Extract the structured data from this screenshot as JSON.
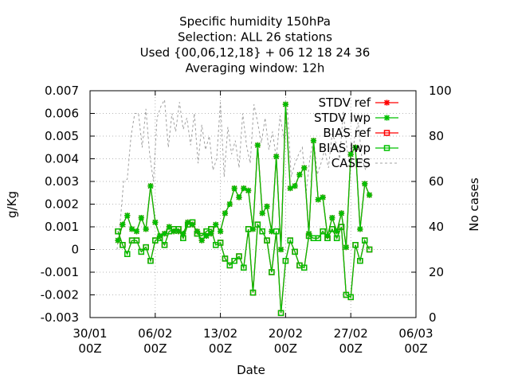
{
  "chart_data": {
    "type": "line",
    "title_lines": [
      "Specific humidity 150hPa",
      "Selection: ALL     26 stations",
      "Used {00,06,12,18} + 06 12 18 24 36",
      "Averaging window: 12h"
    ],
    "xlabel": "Date",
    "ylabel": "g/Kg",
    "y2label": "No cases",
    "xlim": [
      0,
      35
    ],
    "ylim": [
      -0.003,
      0.007
    ],
    "y2lim": [
      0,
      100
    ],
    "x_ticks": [
      {
        "value": 0,
        "line1": "30/01",
        "line2": "00Z"
      },
      {
        "value": 7,
        "line1": "06/02",
        "line2": "00Z"
      },
      {
        "value": 14,
        "line1": "13/02",
        "line2": "00Z"
      },
      {
        "value": 21,
        "line1": "20/02",
        "line2": "00Z"
      },
      {
        "value": 28,
        "line1": "27/02",
        "line2": "00Z"
      },
      {
        "value": 35,
        "line1": "06/03",
        "line2": "00Z"
      }
    ],
    "y_ticks": [
      "-0.003",
      "-0.002",
      "-0.001",
      "0",
      "0.001",
      "0.002",
      "0.003",
      "0.004",
      "0.005",
      "0.006",
      "0.007"
    ],
    "y2_ticks": [
      "0",
      "20",
      "40",
      "60",
      "80",
      "100"
    ],
    "legend_position": "top-right",
    "grid": "dotted",
    "series": [
      {
        "name": "STDV ref",
        "color": "#ff0000",
        "marker": "star",
        "axis": "y",
        "x": [
          3.0,
          3.5,
          4.0,
          4.5,
          5.0,
          5.5,
          6.0,
          6.5,
          7.0,
          7.5,
          8.0,
          8.5,
          9.0,
          9.5,
          10.0,
          10.5,
          11.0,
          11.5,
          12.0,
          12.5,
          13.0,
          13.5,
          14.0,
          14.5,
          15.0,
          15.5,
          16.0,
          16.5,
          17.0,
          17.5,
          18.0,
          18.5,
          19.0,
          19.5,
          20.0,
          20.5,
          21.0,
          21.5,
          22.0,
          22.5,
          23.0,
          23.5,
          24.0,
          24.5,
          25.0,
          25.5,
          26.0,
          26.5,
          27.0,
          27.5,
          28.0,
          28.5,
          29.0,
          29.5,
          30.0
        ],
        "y": [
          0.0004,
          0.0011,
          0.0015,
          0.0009,
          0.0008,
          0.0014,
          0.0009,
          0.0028,
          0.0012,
          0.0006,
          0.0007,
          0.001,
          0.0008,
          0.0008,
          0.0007,
          0.0012,
          0.0011,
          0.0008,
          0.0004,
          0.0006,
          0.0007,
          0.0011,
          0.0008,
          0.0016,
          0.002,
          0.0027,
          0.0023,
          0.0027,
          0.0026,
          0.0009,
          0.0046,
          0.0016,
          0.0019,
          0.0008,
          0.0041,
          0.0,
          0.0064,
          0.0027,
          0.0028,
          0.0033,
          0.0036,
          0.0007,
          0.0048,
          0.0022,
          0.0023,
          0.0006,
          0.0014,
          0.0008,
          0.0016,
          0.0001,
          0.0042,
          0.0045,
          0.0009,
          0.0029,
          0.0024
        ]
      },
      {
        "name": "STDV lwp",
        "color": "#00c000",
        "marker": "star",
        "axis": "y",
        "x": [
          3.0,
          3.5,
          4.0,
          4.5,
          5.0,
          5.5,
          6.0,
          6.5,
          7.0,
          7.5,
          8.0,
          8.5,
          9.0,
          9.5,
          10.0,
          10.5,
          11.0,
          11.5,
          12.0,
          12.5,
          13.0,
          13.5,
          14.0,
          14.5,
          15.0,
          15.5,
          16.0,
          16.5,
          17.0,
          17.5,
          18.0,
          18.5,
          19.0,
          19.5,
          20.0,
          20.5,
          21.0,
          21.5,
          22.0,
          22.5,
          23.0,
          23.5,
          24.0,
          24.5,
          25.0,
          25.5,
          26.0,
          26.5,
          27.0,
          27.5,
          28.0,
          28.5,
          29.0,
          29.5,
          30.0
        ],
        "y": [
          0.0004,
          0.0011,
          0.0015,
          0.0009,
          0.0008,
          0.0014,
          0.0009,
          0.0028,
          0.0012,
          0.0006,
          0.0007,
          0.001,
          0.0008,
          0.0008,
          0.0007,
          0.0012,
          0.0011,
          0.0008,
          0.0004,
          0.0006,
          0.0007,
          0.0011,
          0.0008,
          0.0016,
          0.002,
          0.0027,
          0.0023,
          0.0027,
          0.0026,
          0.0009,
          0.0046,
          0.0016,
          0.0019,
          0.0008,
          0.0041,
          0.0,
          0.0064,
          0.0027,
          0.0028,
          0.0033,
          0.0036,
          0.0007,
          0.0048,
          0.0022,
          0.0023,
          0.0006,
          0.0014,
          0.0008,
          0.0016,
          0.0001,
          0.0042,
          0.0045,
          0.0009,
          0.0029,
          0.0024
        ]
      },
      {
        "name": "BIAS ref",
        "color": "#ff0000",
        "marker": "square",
        "axis": "y",
        "x": [
          3.0,
          3.5,
          4.0,
          4.5,
          5.0,
          5.5,
          6.0,
          6.5,
          7.0,
          7.5,
          8.0,
          8.5,
          9.0,
          9.5,
          10.0,
          10.5,
          11.0,
          11.5,
          12.0,
          12.5,
          13.0,
          13.5,
          14.0,
          14.5,
          15.0,
          15.5,
          16.0,
          16.5,
          17.0,
          17.5,
          18.0,
          18.5,
          19.0,
          19.5,
          20.0,
          20.5,
          21.0,
          21.5,
          22.0,
          22.5,
          23.0,
          23.5,
          24.0,
          24.5,
          25.0,
          25.5,
          26.0,
          26.5,
          27.0,
          27.5,
          28.0,
          28.5,
          29.0,
          29.5,
          30.0
        ],
        "y": [
          0.0008,
          0.0002,
          -0.0002,
          0.0004,
          0.0004,
          -0.0001,
          0.0001,
          -0.0005,
          0.0004,
          0.0005,
          0.0002,
          0.0008,
          0.0009,
          0.0009,
          0.0005,
          0.0011,
          0.0012,
          0.0007,
          0.0006,
          0.0008,
          0.0009,
          0.0002,
          0.0003,
          -0.0004,
          -0.0007,
          -0.0005,
          -0.0003,
          -0.0008,
          0.0009,
          -0.0019,
          0.0011,
          0.0008,
          0.0004,
          -0.001,
          0.0008,
          -0.0028,
          -0.0005,
          0.0004,
          -0.0001,
          -0.0007,
          -0.0008,
          0.0006,
          0.0005,
          0.0005,
          0.0008,
          0.0005,
          0.0009,
          0.0005,
          0.001,
          -0.002,
          -0.0021,
          0.0002,
          -0.0005,
          0.0004,
          0.0
        ]
      },
      {
        "name": "BIAS lwp",
        "color": "#00c000",
        "marker": "square",
        "axis": "y",
        "x": [
          3.0,
          3.5,
          4.0,
          4.5,
          5.0,
          5.5,
          6.0,
          6.5,
          7.0,
          7.5,
          8.0,
          8.5,
          9.0,
          9.5,
          10.0,
          10.5,
          11.0,
          11.5,
          12.0,
          12.5,
          13.0,
          13.5,
          14.0,
          14.5,
          15.0,
          15.5,
          16.0,
          16.5,
          17.0,
          17.5,
          18.0,
          18.5,
          19.0,
          19.5,
          20.0,
          20.5,
          21.0,
          21.5,
          22.0,
          22.5,
          23.0,
          23.5,
          24.0,
          24.5,
          25.0,
          25.5,
          26.0,
          26.5,
          27.0,
          27.5,
          28.0,
          28.5,
          29.0,
          29.5,
          30.0
        ],
        "y": [
          0.0008,
          0.0002,
          -0.0002,
          0.0004,
          0.0004,
          -0.0001,
          0.0001,
          -0.0005,
          0.0004,
          0.0005,
          0.0002,
          0.0008,
          0.0009,
          0.0009,
          0.0005,
          0.0011,
          0.0012,
          0.0007,
          0.0006,
          0.0008,
          0.0009,
          0.0002,
          0.0003,
          -0.0004,
          -0.0007,
          -0.0005,
          -0.0003,
          -0.0008,
          0.0009,
          -0.0019,
          0.0011,
          0.0008,
          0.0004,
          -0.001,
          0.0008,
          -0.0028,
          -0.0005,
          0.0004,
          -0.0001,
          -0.0007,
          -0.0008,
          0.0006,
          0.0005,
          0.0005,
          0.0008,
          0.0005,
          0.0009,
          0.0005,
          0.001,
          -0.002,
          -0.0021,
          0.0002,
          -0.0005,
          0.0004,
          0.0
        ]
      },
      {
        "name": "CASES",
        "color": "#a0a0a0",
        "marker": "none",
        "dash": "dashed",
        "axis": "y2",
        "x": [
          2.9,
          3.3,
          3.6,
          4.0,
          4.4,
          4.8,
          5.2,
          5.6,
          6.0,
          6.4,
          6.8,
          7.2,
          7.6,
          8.0,
          8.4,
          8.8,
          9.2,
          9.6,
          10.0,
          10.4,
          10.8,
          11.2,
          11.6,
          12.0,
          12.4,
          12.8,
          13.2,
          13.6,
          14.0,
          14.4,
          14.8,
          15.2,
          15.6,
          16.0,
          16.4,
          16.8,
          17.2,
          17.6,
          18.0,
          18.4,
          18.8,
          19.2,
          19.6,
          20.0,
          20.4,
          20.8,
          21.2,
          21.6,
          22.0,
          22.4,
          22.8,
          23.2,
          23.6,
          24.0,
          24.4,
          24.8,
          25.2,
          25.6,
          26.0,
          26.4,
          26.8,
          27.2,
          27.6,
          28.0,
          28.4,
          28.8,
          29.2,
          29.6,
          30.0
        ],
        "y": [
          30,
          45,
          60,
          61,
          80,
          90,
          90,
          75,
          92,
          72,
          60,
          88,
          93,
          96,
          75,
          90,
          82,
          95,
          83,
          88,
          76,
          90,
          68,
          85,
          74,
          80,
          65,
          70,
          95,
          62,
          84,
          72,
          78,
          66,
          90,
          76,
          68,
          94,
          86,
          77,
          88,
          74,
          82,
          70,
          89,
          79,
          92,
          62,
          68,
          72,
          75,
          55,
          70,
          79,
          63,
          68,
          74,
          66,
          81,
          77,
          70,
          91,
          74,
          66,
          79,
          86,
          70,
          65,
          70
        ]
      }
    ]
  }
}
